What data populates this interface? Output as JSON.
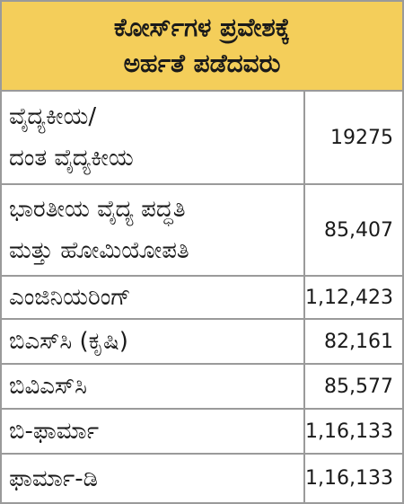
{
  "header": {
    "lines": [
      "ಕೋರ್ಸ್‌ಗಳ ಪ್ರವೇಶಕ್ಕೆ",
      "ಅರ್ಹತೆ ಪಡೆದವರು"
    ]
  },
  "table": {
    "rows": [
      {
        "label": [
          "ವೈದ್ಯಕೀಯ/",
          "ದಂತ ವೈದ್ಯಕೀಯ"
        ],
        "value": "19275"
      },
      {
        "label": [
          "ಭಾರತೀಯ ವೈದ್ಯ ಪದ್ಧತಿ",
          "ಮತ್ತು ಹೋಮಿಯೋಪತಿ"
        ],
        "value": "85,407"
      },
      {
        "label": [
          "ಎಂಜಿನಿಯರಿಂಗ್"
        ],
        "value": "1,12,423"
      },
      {
        "label": [
          "ಬಿಎಸ್‌ಸಿ (ಕೃಷಿ)"
        ],
        "value": "82,161"
      },
      {
        "label": [
          "ಬಿವಿಎಸ್‌ಸಿ"
        ],
        "value": "85,577"
      },
      {
        "label": [
          "ಬಿ-ಫಾರ್ಮಾ"
        ],
        "value": "1,16,133"
      },
      {
        "label": [
          "ಫಾರ್ಮಾ-ಡಿ"
        ],
        "value": "1,16,133"
      }
    ]
  }
}
